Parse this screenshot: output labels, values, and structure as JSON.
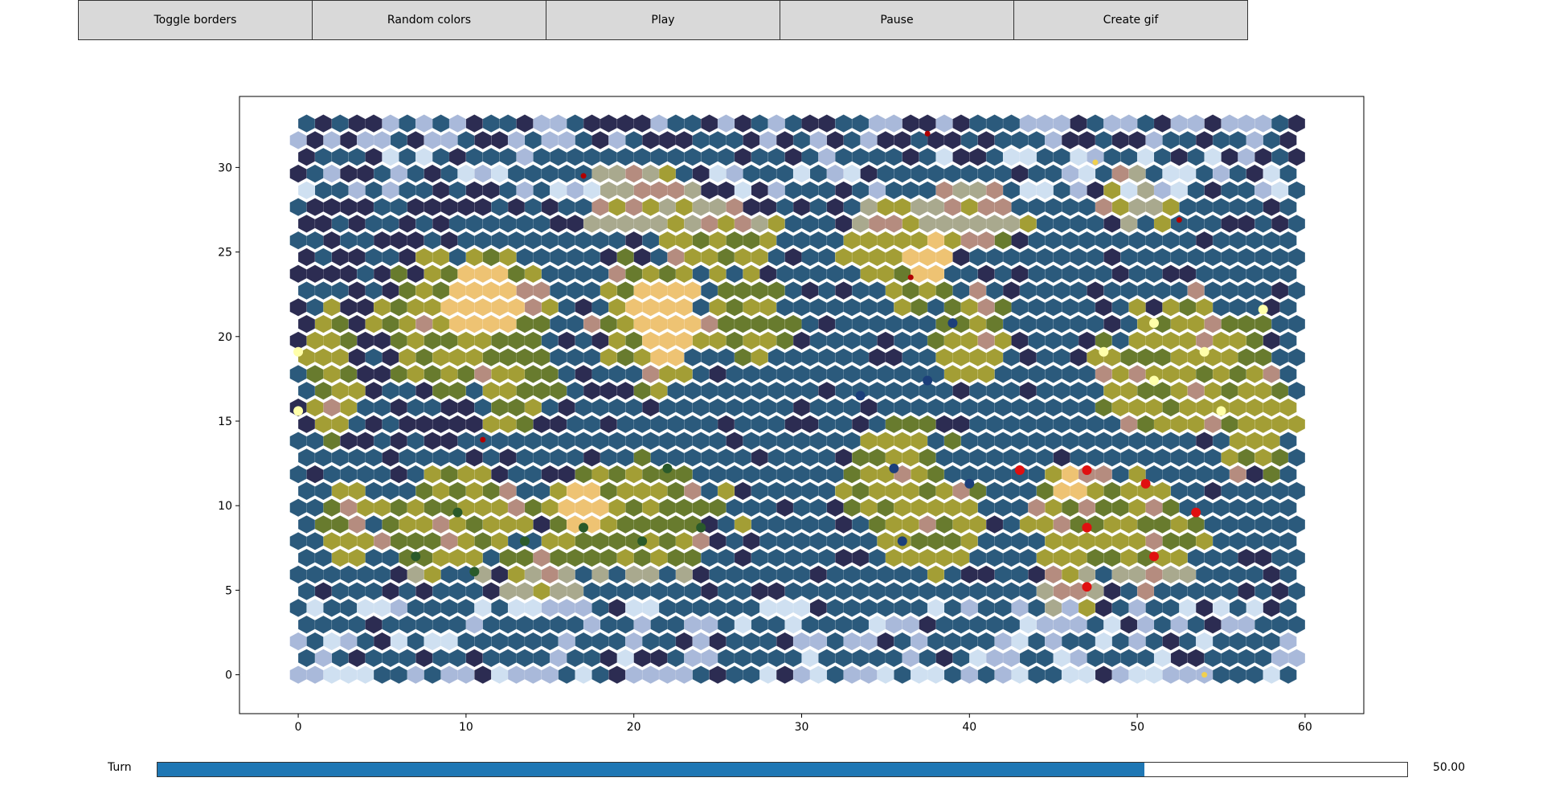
{
  "toolbar": {
    "buttons": [
      {
        "label": "Toggle borders"
      },
      {
        "label": "Random colors"
      },
      {
        "label": "Play"
      },
      {
        "label": "Pause"
      },
      {
        "label": "Create gif"
      }
    ]
  },
  "map": {
    "x_ticks": [
      "0",
      "10",
      "20",
      "30",
      "40",
      "50",
      "60"
    ],
    "y_ticks": [
      "0",
      "5",
      "10",
      "15",
      "20",
      "25",
      "30"
    ],
    "xlim": [
      -3.5,
      63.5
    ],
    "ylim": [
      -2.3,
      34.2
    ],
    "terrain_colors": {
      "deep_ocean": "#2c2c52",
      "ocean": "#2b5a7c",
      "ice": "#a9b9da",
      "snow": "#cfe0f1",
      "tundra": "#a9a98e",
      "grassland": "#687b2e",
      "plains": "#a39e35",
      "desert": "#eec373",
      "hills": "#b58c7f"
    },
    "civ_colors": [
      "#e01010",
      "#ffffaa",
      "#1c3f7a",
      "#2a5a2a",
      "#b00000",
      "#f0d050"
    ]
  },
  "slider": {
    "label": "Turn",
    "value_text": "50.00",
    "fraction": 0.79
  }
}
